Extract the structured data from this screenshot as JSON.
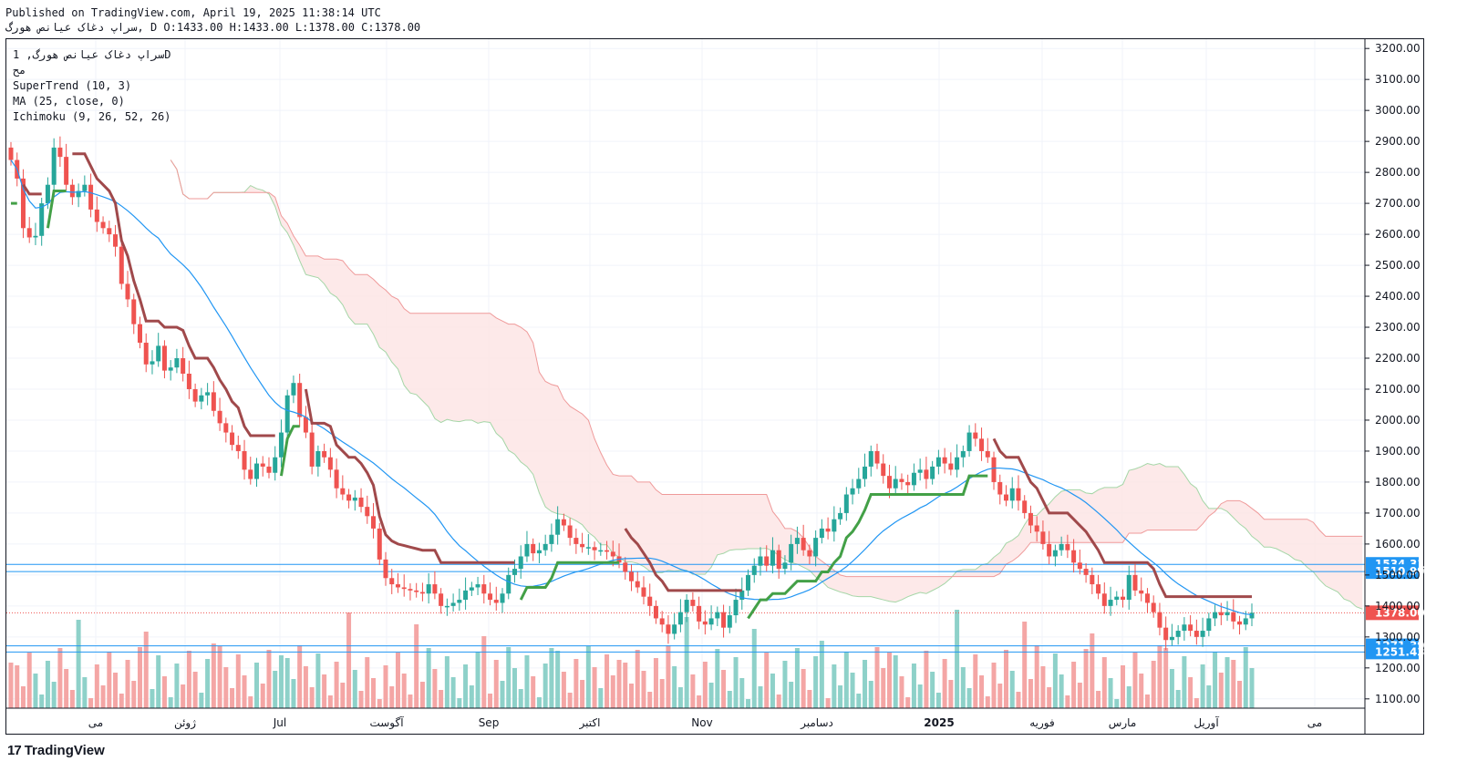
{
  "header": {
    "line1": "Published on TradingView.com, April 19, 2025 11:38:14 UTC",
    "line2": "سراپ دغاک عیانص هورگ, D O:1433.00 H:1433.00 L:1378.00 C:1378.00"
  },
  "legend": {
    "symbol_line": "سراپ دغاک عیانص هورگ, 1D",
    "exchange": "مح",
    "supertrend": "SuperTrend (10, 3)",
    "ma": "MA (25, close, 0)",
    "ichimoku": "Ichimoku (9, 26, 52, 26)"
  },
  "footer": {
    "brand": "TradingView",
    "logo": "17"
  },
  "colors": {
    "up": "#26a69a",
    "down": "#ef5350",
    "supertrend_up": "#43a047",
    "supertrend_down": "#a0494b",
    "ma": "#2196f3",
    "cloud_bear": "#fce4e4",
    "cloud_bull": "#e8f5e9",
    "hline": "#2196f3"
  },
  "chart_data": {
    "type": "candlestick",
    "timeframe": "1D",
    "y_axis": {
      "ticks": [
        1100,
        1200,
        1300,
        1400,
        1500,
        1600,
        1700,
        1800,
        1900,
        2000,
        2100,
        2200,
        2300,
        2400,
        2500,
        2600,
        2700,
        2800,
        2900,
        3000,
        3100,
        3200
      ],
      "tick_labels": [
        "1100.00",
        "1200.00",
        "1300.00",
        "1400.00",
        "1500.00",
        "1600.00",
        "1700.00",
        "1800.00",
        "1900.00",
        "2000.00",
        "2100.00",
        "2200.00",
        "2300.00",
        "2400.00",
        "2500.00",
        "2600.00",
        "2700.00",
        "2800.00",
        "2900.00",
        "3000.00",
        "3100.00",
        "3200.00"
      ],
      "range": [
        1070,
        3230
      ]
    },
    "x_axis": {
      "labels": [
        "می",
        "ژوئن",
        "Jul",
        "آگوست",
        "Sep",
        "اکتبر",
        "Nov",
        "دسامبر",
        "2025",
        "فوریه",
        "مارس",
        "آوریل",
        "می"
      ]
    },
    "horizontal_lines": [
      {
        "value": 1534.31,
        "label": "1534.31"
      },
      {
        "value": 1510.99,
        "label": "1510.99"
      },
      {
        "value": 1271.39,
        "label": "1271.39"
      },
      {
        "value": 1251.43,
        "label": "1251.43"
      }
    ],
    "last_price": {
      "value": 1378.0,
      "label": "1378.00"
    },
    "close_series": [
      2840,
      2780,
      2620,
      2590,
      2595,
      2700,
      2760,
      2880,
      2850,
      2760,
      2720,
      2740,
      2760,
      2680,
      2640,
      2620,
      2600,
      2560,
      2440,
      2390,
      2310,
      2250,
      2180,
      2190,
      2240,
      2160,
      2170,
      2200,
      2150,
      2100,
      2060,
      2080,
      2090,
      2030,
      1990,
      1960,
      1920,
      1900,
      1840,
      1810,
      1860,
      1850,
      1830,
      1880,
      1960,
      2080,
      2120,
      2010,
      1960,
      1850,
      1900,
      1880,
      1840,
      1780,
      1760,
      1740,
      1750,
      1720,
      1690,
      1650,
      1550,
      1490,
      1470,
      1460,
      1455,
      1450,
      1445,
      1440,
      1470,
      1440,
      1400,
      1400,
      1410,
      1420,
      1450,
      1460,
      1470,
      1440,
      1420,
      1410,
      1440,
      1500,
      1520,
      1560,
      1600,
      1570,
      1580,
      1600,
      1630,
      1680,
      1660,
      1620,
      1600,
      1590,
      1590,
      1580,
      1580,
      1575,
      1560,
      1540,
      1510,
      1480,
      1460,
      1430,
      1400,
      1360,
      1340,
      1310,
      1340,
      1380,
      1420,
      1400,
      1350,
      1340,
      1360,
      1380,
      1330,
      1370,
      1420,
      1450,
      1500,
      1530,
      1560,
      1530,
      1580,
      1520,
      1540,
      1600,
      1620,
      1580,
      1560,
      1620,
      1650,
      1640,
      1680,
      1700,
      1760,
      1780,
      1810,
      1850,
      1900,
      1860,
      1820,
      1780,
      1810,
      1800,
      1790,
      1830,
      1840,
      1810,
      1850,
      1880,
      1860,
      1840,
      1880,
      1900,
      1960,
      1940,
      1900,
      1880,
      1800,
      1760,
      1740,
      1780,
      1740,
      1700,
      1660,
      1640,
      1600,
      1560,
      1580,
      1600,
      1580,
      1540,
      1520,
      1500,
      1470,
      1440,
      1400,
      1420,
      1430,
      1420,
      1500,
      1450,
      1440,
      1410,
      1380,
      1330,
      1290,
      1300,
      1320,
      1340,
      1320,
      1300,
      1320,
      1360,
      1380,
      1370,
      1380,
      1350,
      1340,
      1360,
      1378
    ],
    "supertrend_note": "SuperTrend (10, 3)",
    "ma_period": 25,
    "ichimoku": [
      9,
      26,
      52,
      26
    ]
  }
}
